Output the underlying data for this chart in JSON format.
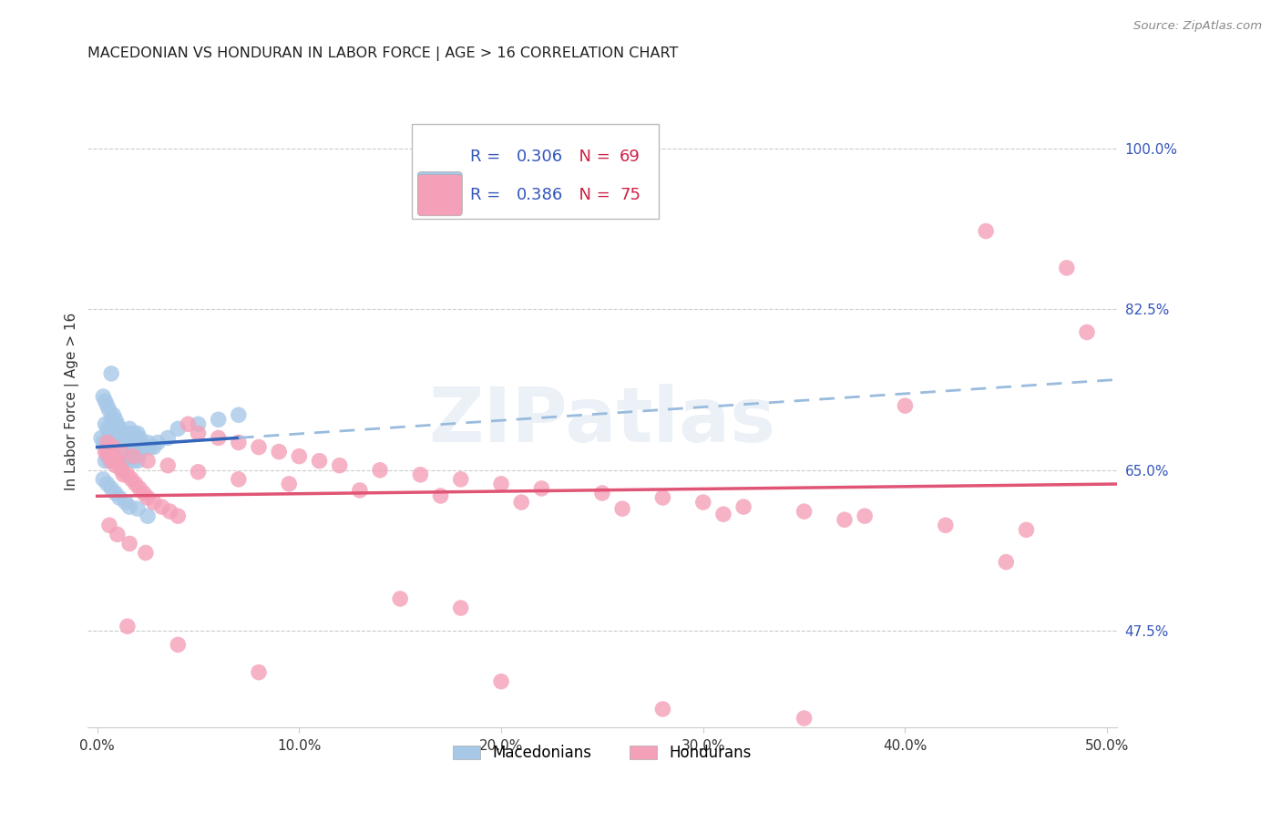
{
  "title": "MACEDONIAN VS HONDURAN IN LABOR FORCE | AGE > 16 CORRELATION CHART",
  "source": "Source: ZipAtlas.com",
  "ylabel": "In Labor Force | Age > 16",
  "xlabel_ticks": [
    "0.0%",
    "10.0%",
    "20.0%",
    "30.0%",
    "40.0%",
    "50.0%"
  ],
  "xlabel_vals": [
    0.0,
    0.1,
    0.2,
    0.3,
    0.4,
    0.5
  ],
  "ylabel_ticks": [
    "47.5%",
    "65.0%",
    "82.5%",
    "100.0%"
  ],
  "ylabel_vals": [
    0.475,
    0.65,
    0.825,
    1.0
  ],
  "xlim": [
    -0.005,
    0.505
  ],
  "ylim": [
    0.37,
    1.08
  ],
  "mac_R": "0.306",
  "mac_N": "69",
  "hon_R": "0.386",
  "hon_N": "75",
  "mac_color": "#a8c8e8",
  "hon_color": "#f4a0b8",
  "mac_line_color": "#3366bb",
  "hon_line_color": "#e05575",
  "mac_dashed_color": "#99bbdd",
  "background_color": "#ffffff",
  "grid_color": "#cccccc",
  "legend_box_color": "#ffffff",
  "legend_border_color": "#bbbbbb",
  "R_color": "#3355bb",
  "N_color": "#cc2244",
  "source_color": "#888888",
  "title_color": "#222222",
  "axis_color": "#333333",
  "watermark_text": "ZIPatlas",
  "watermark_color": "#c8d8e8",
  "watermark_alpha": 0.35
}
